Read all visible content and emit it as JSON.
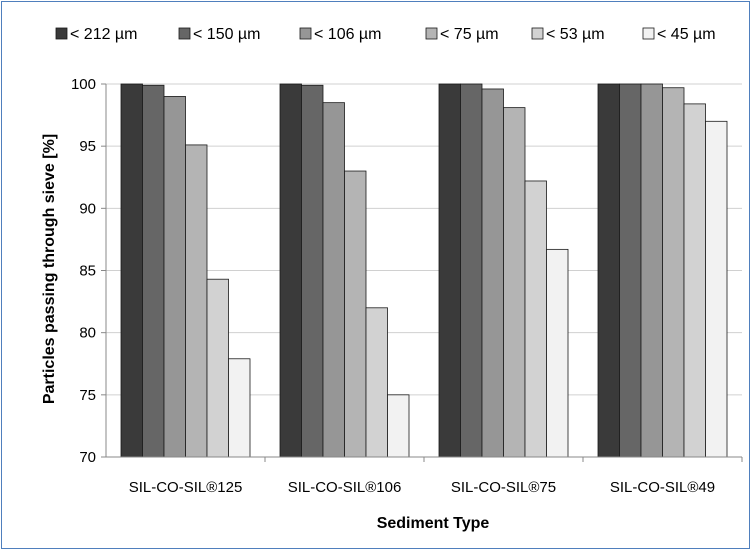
{
  "chart_data": {
    "type": "bar",
    "title": "",
    "xlabel": "Sediment Type",
    "ylabel": "Particles passing through sieve [%]",
    "ylim": [
      70,
      100
    ],
    "yticks": [
      "70",
      "75",
      "80",
      "85",
      "90",
      "95",
      "100"
    ],
    "grid": true,
    "legend_position": "top",
    "categories": [
      "SIL-CO-SIL®125",
      "SIL-CO-SIL®106",
      "SIL-CO-SIL®75",
      "SIL-CO-SIL®49"
    ],
    "series": [
      {
        "name": "< 212 µm",
        "color": "#3a3a3a",
        "values": [
          100,
          100,
          100,
          100
        ]
      },
      {
        "name": "< 150 µm",
        "color": "#666666",
        "values": [
          99.9,
          99.9,
          100,
          100
        ]
      },
      {
        "name": "< 106 µm",
        "color": "#969696",
        "values": [
          99.0,
          98.5,
          99.6,
          100
        ]
      },
      {
        "name": "< 75 µm",
        "color": "#b4b4b4",
        "values": [
          95.1,
          93.0,
          98.1,
          99.7
        ]
      },
      {
        "name": "< 53 µm",
        "color": "#d2d2d2",
        "values": [
          84.3,
          82.0,
          92.2,
          98.4
        ]
      },
      {
        "name": "< 45 µm",
        "color": "#f2f2f2",
        "values": [
          77.9,
          75.0,
          86.7,
          97.0
        ]
      }
    ]
  }
}
